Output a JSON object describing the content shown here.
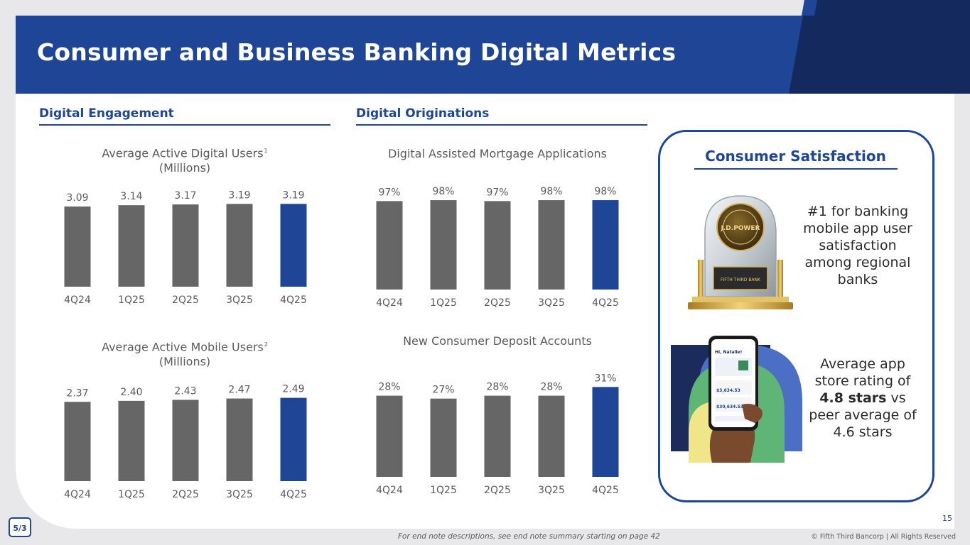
{
  "header": {
    "title": "Consumer and Business Banking Digital Metrics"
  },
  "sections": {
    "engagement": "Digital Engagement",
    "originations": "Digital Originations"
  },
  "chart_data": [
    {
      "type": "bar",
      "title": "Average Active Digital Users",
      "title_footnote": "1",
      "subtitle": "(Millions)",
      "categories": [
        "4Q24",
        "1Q25",
        "2Q25",
        "3Q25",
        "4Q25"
      ],
      "values": [
        3.09,
        3.14,
        3.17,
        3.19,
        3.19
      ],
      "labels": [
        "3.09",
        "3.14",
        "3.17",
        "3.19",
        "3.19"
      ],
      "highlight_index": 4,
      "ylim": [
        0,
        3.5
      ]
    },
    {
      "type": "bar",
      "title": "Average Active Mobile Users",
      "title_footnote": "2",
      "subtitle": "(Millions)",
      "categories": [
        "4Q24",
        "1Q25",
        "2Q25",
        "3Q25",
        "4Q25"
      ],
      "values": [
        2.37,
        2.4,
        2.43,
        2.47,
        2.49
      ],
      "labels": [
        "2.37",
        "2.40",
        "2.43",
        "2.47",
        "2.49"
      ],
      "highlight_index": 4,
      "ylim": [
        0,
        2.8
      ]
    },
    {
      "type": "bar",
      "title": "Digital Assisted Mortgage Applications",
      "categories": [
        "4Q24",
        "1Q25",
        "2Q25",
        "3Q25",
        "4Q25"
      ],
      "values": [
        97,
        98,
        97,
        98,
        98
      ],
      "labels": [
        "97%",
        "98%",
        "97%",
        "98%",
        "98%"
      ],
      "highlight_index": 4,
      "ylim": [
        0,
        100
      ]
    },
    {
      "type": "bar",
      "title": "New Consumer Deposit Accounts",
      "categories": [
        "4Q24",
        "1Q25",
        "2Q25",
        "3Q25",
        "4Q25"
      ],
      "values": [
        28,
        27,
        28,
        28,
        31
      ],
      "labels": [
        "28%",
        "27%",
        "28%",
        "28%",
        "31%"
      ],
      "highlight_index": 4,
      "ylim": [
        0,
        35
      ]
    }
  ],
  "colors": {
    "bar": "#666666",
    "highlight": "#1f4596",
    "label": "#5b5b5b"
  },
  "satisfaction": {
    "title": "Consumer Satisfaction",
    "award_text": "#1 for banking mobile app user satisfaction among regional banks",
    "rating_prefix": "Average app store rating of ",
    "rating_bold": "4.8 stars",
    "rating_suffix": " vs peer average of 4.6 stars",
    "award_badge_text": "J.D.POWER",
    "award_plaque_text": "FIFTH THIRD BANK",
    "phone_greeting": "Hi, Natalie!",
    "phone_balance_1": "$3,634.53",
    "phone_balance_2": "$30,634.53"
  },
  "footer": {
    "page_number": "15",
    "end_note": "For end note descriptions, see end note summary starting on page 42",
    "copyright": "© Fifth Third Bancorp | All Rights Reserved",
    "logo_text": "5/3"
  }
}
